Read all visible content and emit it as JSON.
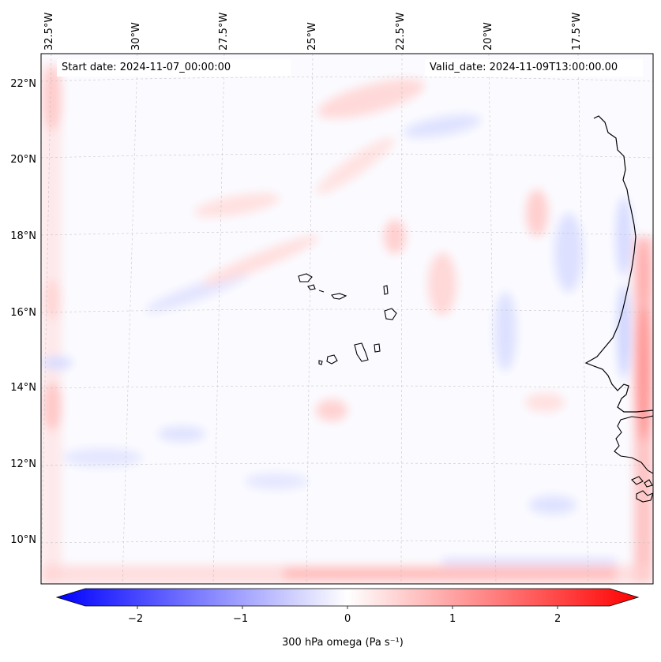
{
  "map": {
    "start_date_label": "Start date: 2024-11-07_00:00:00",
    "valid_date_label": "Valid_date: 2024-11-09T13:00:00.00",
    "variable_label": "300 hPa omega (Pa s⁻¹)",
    "latitude_labels": [
      "22°N",
      "20°N",
      "18°N",
      "16°N",
      "14°N",
      "12°N",
      "10°N"
    ],
    "longitude_labels": [
      "32.5°W",
      "30°W",
      "27.5°W",
      "25°W",
      "22.5°W",
      "20°W",
      "17.5°W"
    ],
    "colorbar": {
      "ticks": [
        "−2",
        "−1",
        "0",
        "1",
        "2"
      ],
      "range": [
        -2.7,
        2.7
      ],
      "low_color": "#0000ff",
      "mid_color": "#ffffff",
      "high_color": "#ff0000"
    },
    "features": [
      "Cape Verde islands",
      "West African coastline"
    ]
  }
}
